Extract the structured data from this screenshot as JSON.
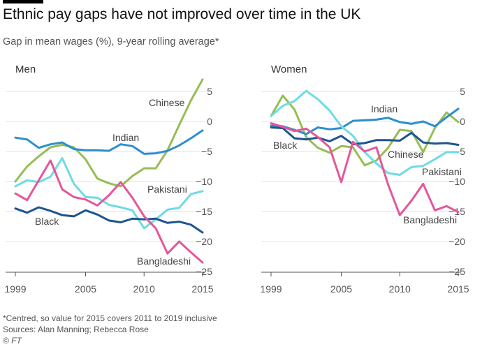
{
  "title": "Ethnic pay gaps have not improved over time in the UK",
  "subtitle": "Gap in mean wages (%), 9-year rolling average*",
  "footnote": "*Centred, so value for 2015 covers 2011 to 2019 inclusive",
  "sources": "Sources: Alan Manning; Rebecca Rose",
  "credit": "© FT",
  "colors": {
    "Chinese": "#96bd55",
    "Indian": "#2c8fd0",
    "Pakistani": "#6fdbe4",
    "Black": "#1e5490",
    "Bangladeshi": "#e4579a"
  },
  "chart_data": [
    {
      "type": "line",
      "title": "Men",
      "x": [
        1999,
        2000,
        2001,
        2002,
        2003,
        2004,
        2005,
        2006,
        2007,
        2008,
        2009,
        2010,
        2011,
        2012,
        2013,
        2014,
        2015
      ],
      "ylim": [
        -25,
        5
      ],
      "yticks": [
        5,
        0,
        -5,
        -10,
        -15,
        -20,
        -25
      ],
      "xticks": [
        1999,
        2005,
        2010,
        2015
      ],
      "series": [
        {
          "name": "Chinese",
          "values": [
            -10,
            -7.5,
            -5.8,
            -4.3,
            -3.9,
            -4.3,
            -6.3,
            -9.5,
            -10.3,
            -10.8,
            -9.1,
            -7.8,
            -7.8,
            -4.8,
            -0.6,
            3.5,
            7
          ]
        },
        {
          "name": "Indian",
          "values": [
            -2.7,
            -3,
            -4.4,
            -3.8,
            -3.5,
            -4.6,
            -4.8,
            -4.8,
            -4.9,
            -3.8,
            -4.1,
            -5.4,
            -5.3,
            -4.9,
            -4,
            -2.8,
            -1.5
          ]
        },
        {
          "name": "Pakistani",
          "values": [
            -10.8,
            -9.8,
            -10.1,
            -9.2,
            -6.1,
            -10.4,
            -12.6,
            -12.7,
            -13.9,
            -14.3,
            -14.8,
            -17.8,
            -16.3,
            -14.7,
            -14.4,
            -12.1,
            -11.6
          ]
        },
        {
          "name": "Black",
          "values": [
            -14.5,
            -15.2,
            -14.3,
            -14.9,
            -15.6,
            -15.8,
            -14.8,
            -15.5,
            -16.5,
            -16.8,
            -16.2,
            -16.3,
            -16.2,
            -16.9,
            -16.7,
            -17.2,
            -18.5
          ]
        },
        {
          "name": "Bangladeshi",
          "values": [
            -12,
            -13.1,
            -9.8,
            -6.5,
            -11.3,
            -12.6,
            -13,
            -14,
            -12.3,
            -10.1,
            -12.7,
            -15.8,
            -17.8,
            -22,
            -20,
            -21.8,
            -23.5
          ]
        }
      ]
    },
    {
      "type": "line",
      "title": "Women",
      "x": [
        1999,
        2000,
        2001,
        2002,
        2003,
        2004,
        2005,
        2006,
        2007,
        2008,
        2009,
        2010,
        2011,
        2012,
        2013,
        2014,
        2015
      ],
      "ylim": [
        -25,
        5
      ],
      "yticks": [
        5,
        0,
        -5,
        -10,
        -15,
        -20,
        -25
      ],
      "xticks": [
        1999,
        2005,
        2010,
        2015
      ],
      "series": [
        {
          "name": "Chinese",
          "values": [
            0.9,
            4.3,
            2,
            -2.6,
            -4.4,
            -5.2,
            -4.1,
            -4.3,
            -7.3,
            -6.5,
            -4.4,
            -1.4,
            -1.6,
            -5.1,
            -1.1,
            1.5,
            -0.1
          ]
        },
        {
          "name": "Indian",
          "values": [
            -0.7,
            -0.8,
            -1.4,
            -2.1,
            -1,
            -1.3,
            -1.1,
            0.1,
            0.2,
            0.3,
            0.6,
            -0.1,
            -0.4,
            0,
            -0.8,
            0.7,
            2.1
          ]
        },
        {
          "name": "Pakistani",
          "values": [
            0.9,
            2.6,
            3.4,
            5.1,
            3.7,
            1.8,
            -0.8,
            -2.4,
            -5.1,
            -7,
            -8.6,
            -8.9,
            -7.6,
            -7.4,
            -6.3,
            -5.1,
            -5.1
          ]
        },
        {
          "name": "Black",
          "values": [
            -1,
            -1.1,
            -2.8,
            -3,
            -2.7,
            -3.3,
            -2.4,
            -3.8,
            -3.6,
            -3.1,
            -3.1,
            -3.2,
            -1.9,
            -3.5,
            -3.7,
            -3.6,
            -3.9
          ]
        },
        {
          "name": "Bangladeshi",
          "values": [
            -0.3,
            -0.9,
            -1.6,
            -1.2,
            -2.6,
            -4.3,
            -10.1,
            -3.4,
            -5,
            -4.3,
            -10.5,
            -15.6,
            -13.2,
            -10.4,
            -14.8,
            -14.1,
            -15.1
          ]
        }
      ]
    }
  ]
}
